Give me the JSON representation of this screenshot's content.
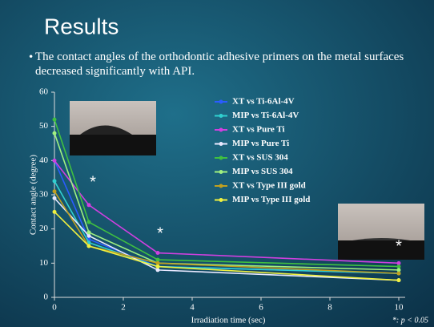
{
  "slide": {
    "title": "Results",
    "bullet": "The contact angles of the orthodontic adhesive primers on the metal surfaces decreased significantly with API."
  },
  "chart_data": {
    "type": "line",
    "x_label": "Irradiation time (sec)",
    "y_label": "Contact angle (degree)",
    "x": [
      0,
      1,
      3,
      10
    ],
    "xlim": [
      0,
      10
    ],
    "xticks": [
      0,
      2,
      4,
      6,
      8,
      10
    ],
    "ylim": [
      0,
      60
    ],
    "yticks": [
      0,
      10,
      20,
      30,
      40,
      50,
      60
    ],
    "series": [
      {
        "name": "XT vs Ti-6Al-4V",
        "color": "#2a5cff",
        "values": [
          40,
          17,
          9,
          7
        ]
      },
      {
        "name": "MIP vs Ti-6Al-4V",
        "color": "#30d0d0",
        "values": [
          34,
          16,
          9,
          7
        ]
      },
      {
        "name": "XT vs Pure Ti",
        "color": "#d040e0",
        "values": [
          40,
          27,
          13,
          10
        ]
      },
      {
        "name": "MIP vs Pure Ti",
        "color": "#e8e8ff",
        "values": [
          29,
          18,
          8,
          5
        ]
      },
      {
        "name": "XT vs SUS 304",
        "color": "#40c040",
        "values": [
          52,
          22,
          11,
          9
        ]
      },
      {
        "name": "MIP vs SUS 304",
        "color": "#a0f080",
        "values": [
          48,
          19,
          10,
          8
        ]
      },
      {
        "name": "XT vs Type III gold",
        "color": "#c0a020",
        "values": [
          31,
          15,
          10,
          7
        ]
      },
      {
        "name": "MIP vs Type III gold",
        "color": "#f0f040",
        "values": [
          25,
          15,
          9,
          5
        ]
      }
    ],
    "annotations": [
      "*",
      "*",
      "*"
    ],
    "footnote": "*: p < 0.05"
  }
}
